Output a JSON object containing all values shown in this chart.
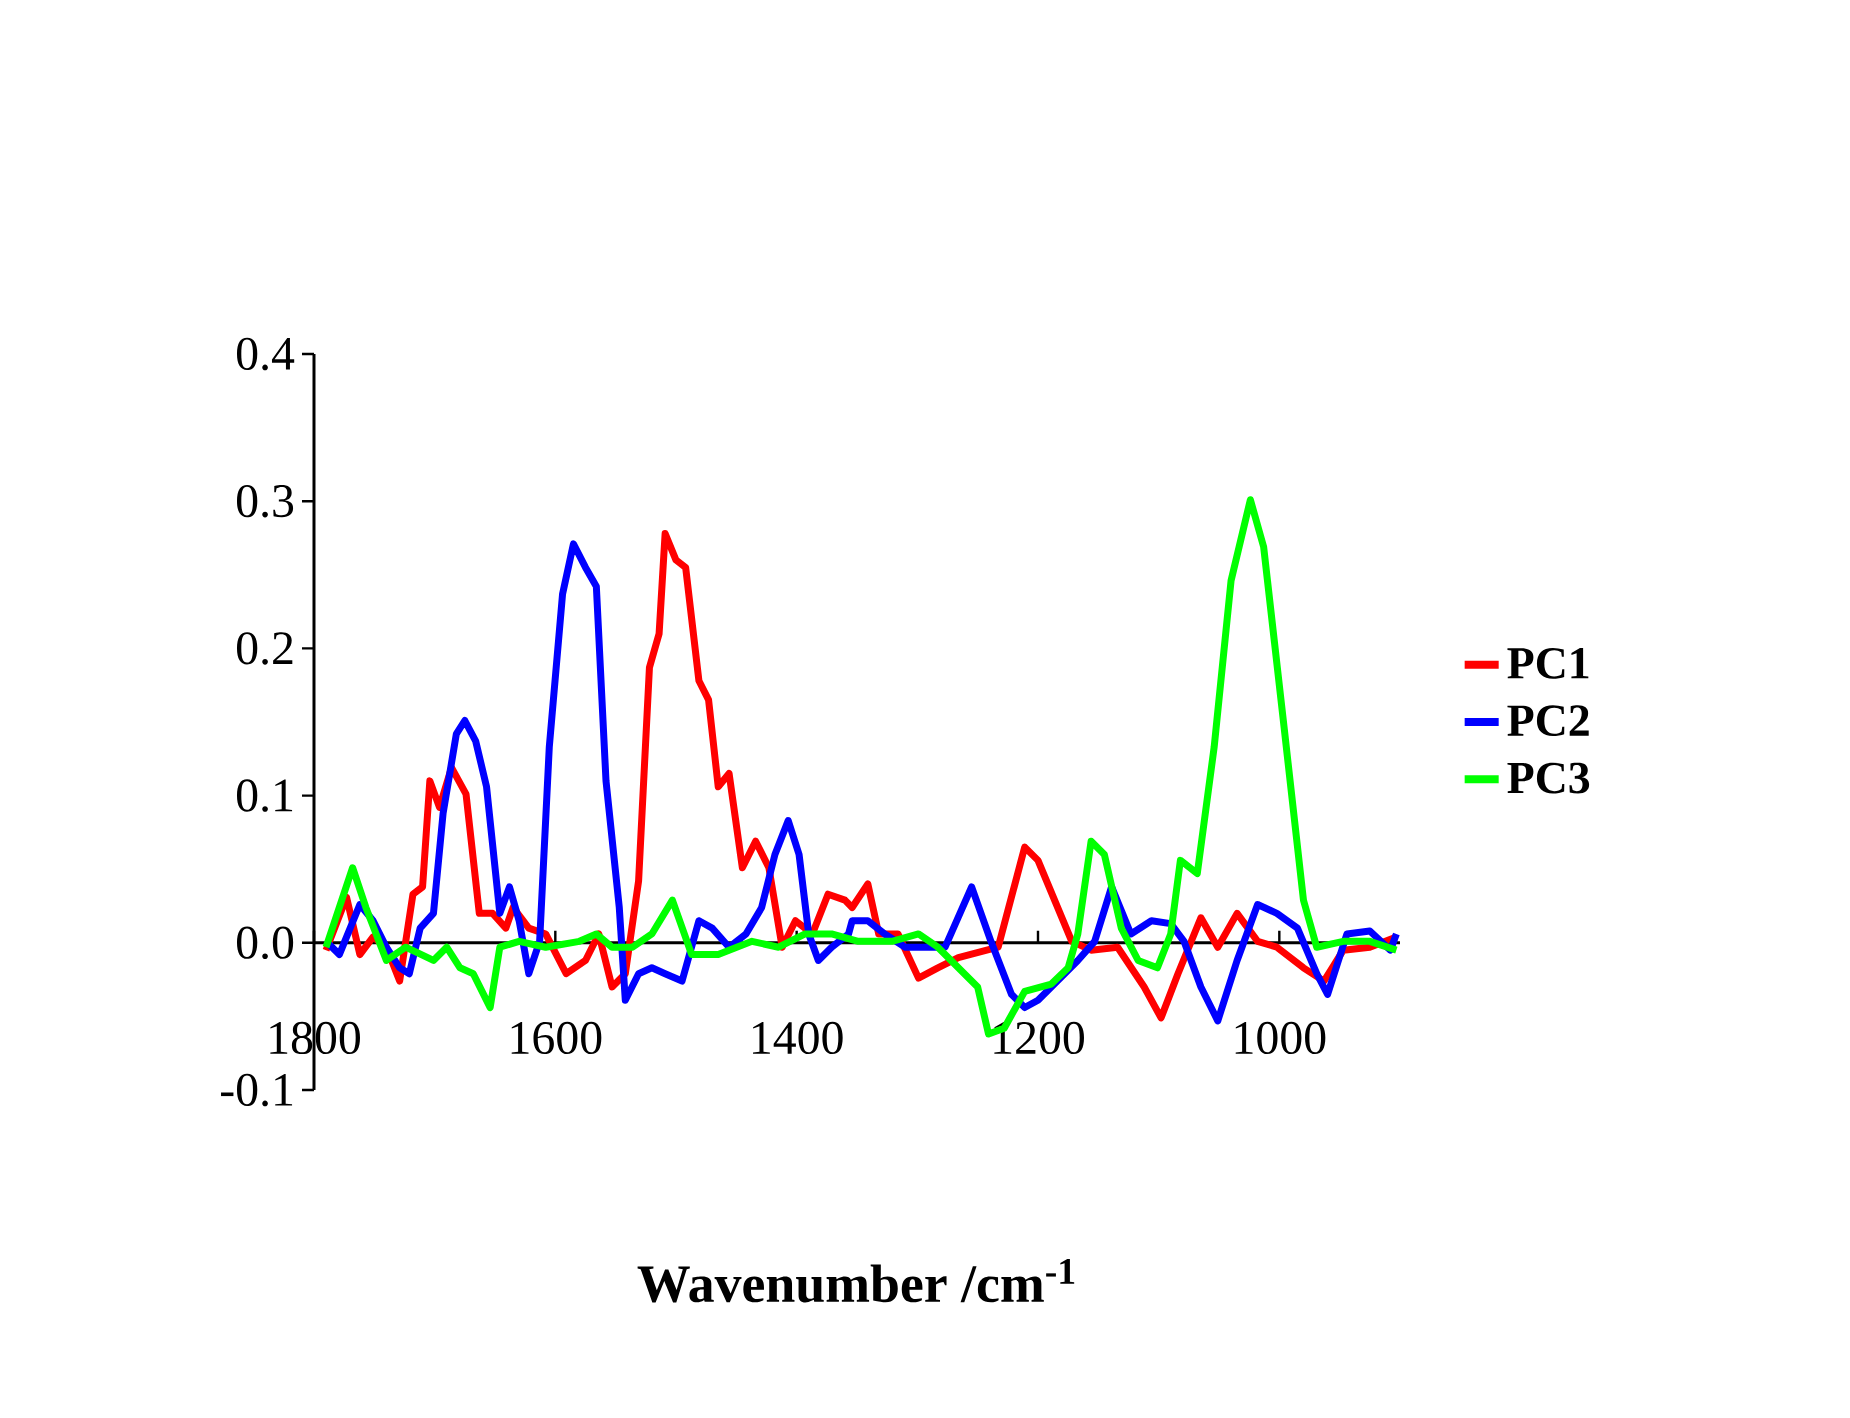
{
  "chart_data": {
    "type": "line",
    "xlabel": "Wavenumber /cm$^{-1}$",
    "xlim": [
      1800,
      900
    ],
    "ylim": [
      -0.1,
      0.4
    ],
    "xticks": [
      1800,
      1600,
      1400,
      1200,
      1000
    ],
    "yticks": [
      {
        "value": -0.1,
        "label": "-0.1"
      },
      {
        "value": 0,
        "label": "0.0"
      },
      {
        "value": 0.1,
        "label": "0.1"
      },
      {
        "value": 0.2,
        "label": "0.2"
      },
      {
        "value": 0.3,
        "label": "0.3"
      },
      {
        "value": 0.4,
        "label": "0.4"
      }
    ],
    "grid": false,
    "legend": "right",
    "marker": "none",
    "line_style": "solid",
    "series": [
      {
        "name": "PC1",
        "color": "#ff0000",
        "x": [
          1790,
          1773,
          1762,
          1751,
          1740,
          1729,
          1718,
          1710,
          1704,
          1696,
          1686,
          1674,
          1663,
          1652,
          1641,
          1635,
          1622,
          1608,
          1591,
          1575,
          1564,
          1553,
          1542,
          1531,
          1522,
          1514,
          1509,
          1500,
          1492,
          1481,
          1473,
          1465,
          1456,
          1445,
          1434,
          1423,
          1412,
          1401,
          1387,
          1374,
          1360,
          1354,
          1341,
          1332,
          1316,
          1299,
          1283,
          1266,
          1233,
          1211,
          1200,
          1172,
          1156,
          1134,
          1112,
          1098,
          1084,
          1065,
          1051,
          1035,
          1018,
          1002,
          980,
          963,
          947,
          925,
          903
        ],
        "values": [
          -0.005,
          0.031,
          -0.008,
          0.004,
          -0.003,
          -0.026,
          0.033,
          0.038,
          0.11,
          0.092,
          0.119,
          0.101,
          0.02,
          0.02,
          0.01,
          0.024,
          0.01,
          0.006,
          -0.021,
          -0.012,
          0.006,
          -0.03,
          -0.021,
          0.042,
          0.187,
          0.21,
          0.278,
          0.26,
          0.255,
          0.178,
          0.165,
          0.106,
          0.115,
          0.051,
          0.069,
          0.051,
          -0.003,
          0.015,
          0.006,
          0.033,
          0.029,
          0.024,
          0.04,
          0.006,
          0.006,
          -0.024,
          -0.017,
          -0.01,
          -0.003,
          0.065,
          0.056,
          0.001,
          -0.005,
          -0.003,
          -0.03,
          -0.051,
          -0.021,
          0.017,
          -0.003,
          0.02,
          0.001,
          -0.003,
          -0.017,
          -0.026,
          -0.005,
          -0.003,
          0.004
        ]
      },
      {
        "name": "PC2",
        "color": "#0000ff",
        "x": [
          1790,
          1779,
          1762,
          1751,
          1740,
          1729,
          1721,
          1712,
          1701,
          1693,
          1682,
          1675,
          1666,
          1657,
          1646,
          1638,
          1630,
          1622,
          1613,
          1605,
          1594,
          1585,
          1575,
          1566,
          1558,
          1547,
          1542,
          1531,
          1520,
          1509,
          1495,
          1481,
          1470,
          1456,
          1442,
          1429,
          1418,
          1407,
          1398,
          1390,
          1382,
          1371,
          1357,
          1354,
          1341,
          1327,
          1310,
          1294,
          1277,
          1255,
          1239,
          1222,
          1211,
          1200,
          1184,
          1167,
          1153,
          1139,
          1123,
          1106,
          1090,
          1079,
          1065,
          1051,
          1035,
          1018,
          1002,
          985,
          969,
          960,
          944,
          925,
          908,
          903
        ],
        "values": [
          0.001,
          -0.008,
          0.026,
          0.015,
          -0.003,
          -0.017,
          -0.021,
          0.01,
          0.02,
          0.088,
          0.142,
          0.151,
          0.137,
          0.106,
          0.02,
          0.038,
          0.015,
          -0.021,
          0.001,
          0.133,
          0.237,
          0.271,
          0.255,
          0.242,
          0.11,
          0.024,
          -0.039,
          -0.021,
          -0.017,
          -0.021,
          -0.026,
          0.015,
          0.01,
          -0.003,
          0.006,
          0.024,
          0.06,
          0.083,
          0.06,
          0.006,
          -0.012,
          -0.003,
          0.006,
          0.015,
          0.015,
          0.006,
          -0.003,
          -0.003,
          -0.003,
          0.038,
          0.001,
          -0.035,
          -0.044,
          -0.039,
          -0.026,
          -0.012,
          0.001,
          0.038,
          0.006,
          0.015,
          0.013,
          0.001,
          -0.03,
          -0.053,
          -0.012,
          0.026,
          0.02,
          0.01,
          -0.021,
          -0.035,
          0.006,
          0.008,
          -0.005,
          0.006
        ]
      },
      {
        "name": "PC3",
        "color": "#00ff00",
        "x": [
          1790,
          1779,
          1768,
          1757,
          1740,
          1724,
          1701,
          1690,
          1679,
          1668,
          1654,
          1646,
          1630,
          1608,
          1580,
          1566,
          1553,
          1536,
          1520,
          1503,
          1487,
          1465,
          1437,
          1415,
          1393,
          1371,
          1349,
          1321,
          1299,
          1283,
          1266,
          1250,
          1241,
          1228,
          1211,
          1189,
          1175,
          1167,
          1156,
          1145,
          1131,
          1117,
          1101,
          1090,
          1082,
          1068,
          1054,
          1040,
          1024,
          1013,
          996,
          980,
          969,
          947,
          925,
          903
        ],
        "values": [
          -0.003,
          0.024,
          0.051,
          0.024,
          -0.012,
          -0.003,
          -0.012,
          -0.003,
          -0.017,
          -0.021,
          -0.044,
          -0.003,
          0.001,
          -0.003,
          0.001,
          0.006,
          -0.003,
          -0.003,
          0.006,
          0.029,
          -0.008,
          -0.008,
          0.001,
          -0.003,
          0.006,
          0.006,
          0.001,
          0.001,
          0.006,
          -0.003,
          -0.017,
          -0.03,
          -0.062,
          -0.058,
          -0.033,
          -0.028,
          -0.017,
          0.006,
          0.069,
          0.06,
          0.01,
          -0.012,
          -0.017,
          0.006,
          0.056,
          0.047,
          0.133,
          0.246,
          0.301,
          0.269,
          0.146,
          0.029,
          -0.003,
          0.001,
          0.001,
          -0.005
        ]
      }
    ]
  }
}
